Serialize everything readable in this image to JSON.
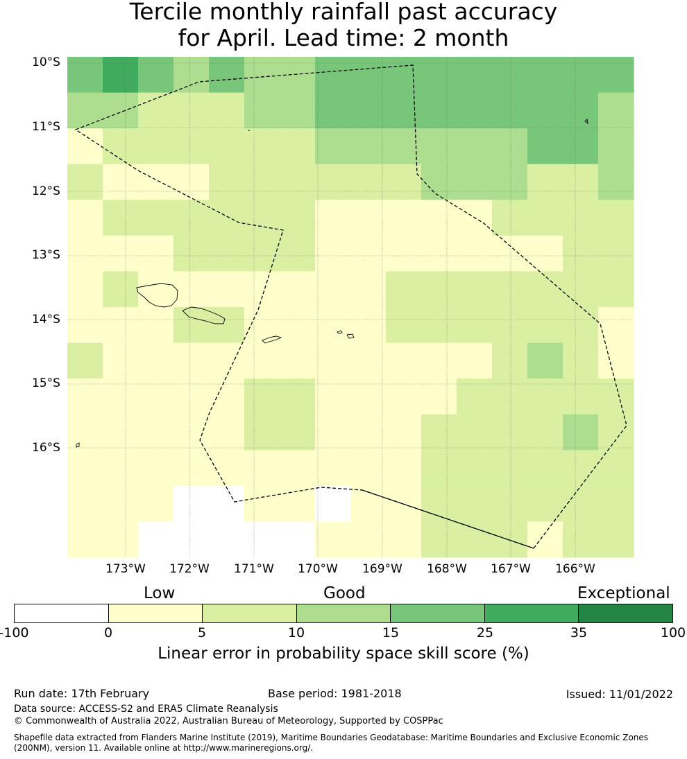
{
  "title": {
    "line1": "Tercile monthly rainfall past accuracy",
    "line2": "for April. Lead time: 2 month"
  },
  "map": {
    "lat_labels": [
      "10°S",
      "11°S",
      "12°S",
      "13°S",
      "14°S",
      "15°S",
      "16°S"
    ],
    "lon_labels": [
      "173°W",
      "172°W",
      "171°W",
      "170°W",
      "169°W",
      "168°W",
      "167°W",
      "166°W"
    ],
    "skill_grid_classes": [
      [
        4,
        5,
        4,
        3,
        4,
        3,
        3,
        4,
        4,
        4,
        4,
        4,
        4,
        4,
        4,
        4
      ],
      [
        3,
        3,
        2,
        2,
        2,
        3,
        3,
        4,
        4,
        4,
        4,
        4,
        4,
        4,
        4,
        3
      ],
      [
        1,
        2,
        2,
        2,
        2,
        2,
        2,
        3,
        3,
        3,
        3,
        3,
        3,
        4,
        4,
        3
      ],
      [
        2,
        1,
        1,
        1,
        2,
        2,
        2,
        2,
        2,
        2,
        3,
        3,
        3,
        2,
        2,
        3
      ],
      [
        1,
        2,
        2,
        2,
        2,
        2,
        2,
        1,
        1,
        1,
        1,
        1,
        2,
        2,
        2,
        2
      ],
      [
        1,
        1,
        1,
        2,
        2,
        2,
        2,
        1,
        1,
        1,
        1,
        1,
        1,
        1,
        2,
        2
      ],
      [
        1,
        2,
        1,
        1,
        1,
        1,
        1,
        1,
        1,
        2,
        2,
        2,
        2,
        2,
        2,
        2
      ],
      [
        1,
        1,
        1,
        2,
        2,
        1,
        1,
        1,
        1,
        2,
        2,
        2,
        2,
        2,
        2,
        1
      ],
      [
        2,
        1,
        1,
        1,
        1,
        1,
        1,
        1,
        1,
        1,
        1,
        1,
        2,
        3,
        2,
        1
      ],
      [
        1,
        1,
        1,
        1,
        1,
        2,
        2,
        1,
        1,
        1,
        1,
        2,
        2,
        2,
        2,
        2
      ],
      [
        1,
        1,
        1,
        1,
        1,
        2,
        2,
        1,
        1,
        1,
        2,
        2,
        2,
        2,
        3,
        2
      ],
      [
        1,
        1,
        1,
        1,
        1,
        1,
        1,
        1,
        1,
        1,
        2,
        2,
        2,
        2,
        2,
        2
      ],
      [
        1,
        1,
        1,
        0,
        0,
        1,
        1,
        0,
        1,
        1,
        2,
        2,
        2,
        2,
        2,
        2
      ],
      [
        1,
        1,
        0,
        0,
        0,
        0,
        0,
        1,
        1,
        1,
        2,
        2,
        2,
        1,
        2,
        2
      ]
    ],
    "colors": [
      "#ffffff",
      "#ffffcc",
      "#d9f0a3",
      "#addd8e",
      "#78c679",
      "#41ab5d",
      "#238443"
    ],
    "boundary_style": "dashed"
  },
  "legend": {
    "categories": [
      "Low",
      "Good",
      "Exceptional"
    ],
    "ticks": [
      "-100",
      "0",
      "5",
      "10",
      "15",
      "25",
      "35",
      "100"
    ],
    "colors": [
      "#ffffff",
      "#ffffcc",
      "#d9f0a3",
      "#addd8e",
      "#78c679",
      "#41ab5d",
      "#238443"
    ],
    "label": "Linear error in probability space skill score (%)"
  },
  "footer": {
    "run_date": "Run date: 17th February",
    "base_period": "Base period: 1981-2018",
    "issued": "Issued: 11/01/2022",
    "data_source": "Data source: ACCESS-S2 and ERA5 Climate Reanalysis",
    "copyright": "© Commonwealth of Australia 2022, Australian Bureau of Meteorology, Supported by COSPPac",
    "shapefile_line1": "Shapefile data extracted from Flanders Marine Institute (2019), Maritime Boundaries Geodatabase: Maritime Boundaries and Exclusive Economic Zones",
    "shapefile_line2": "(200NM), version 11. Available online at http://www.marineregions.org/."
  }
}
